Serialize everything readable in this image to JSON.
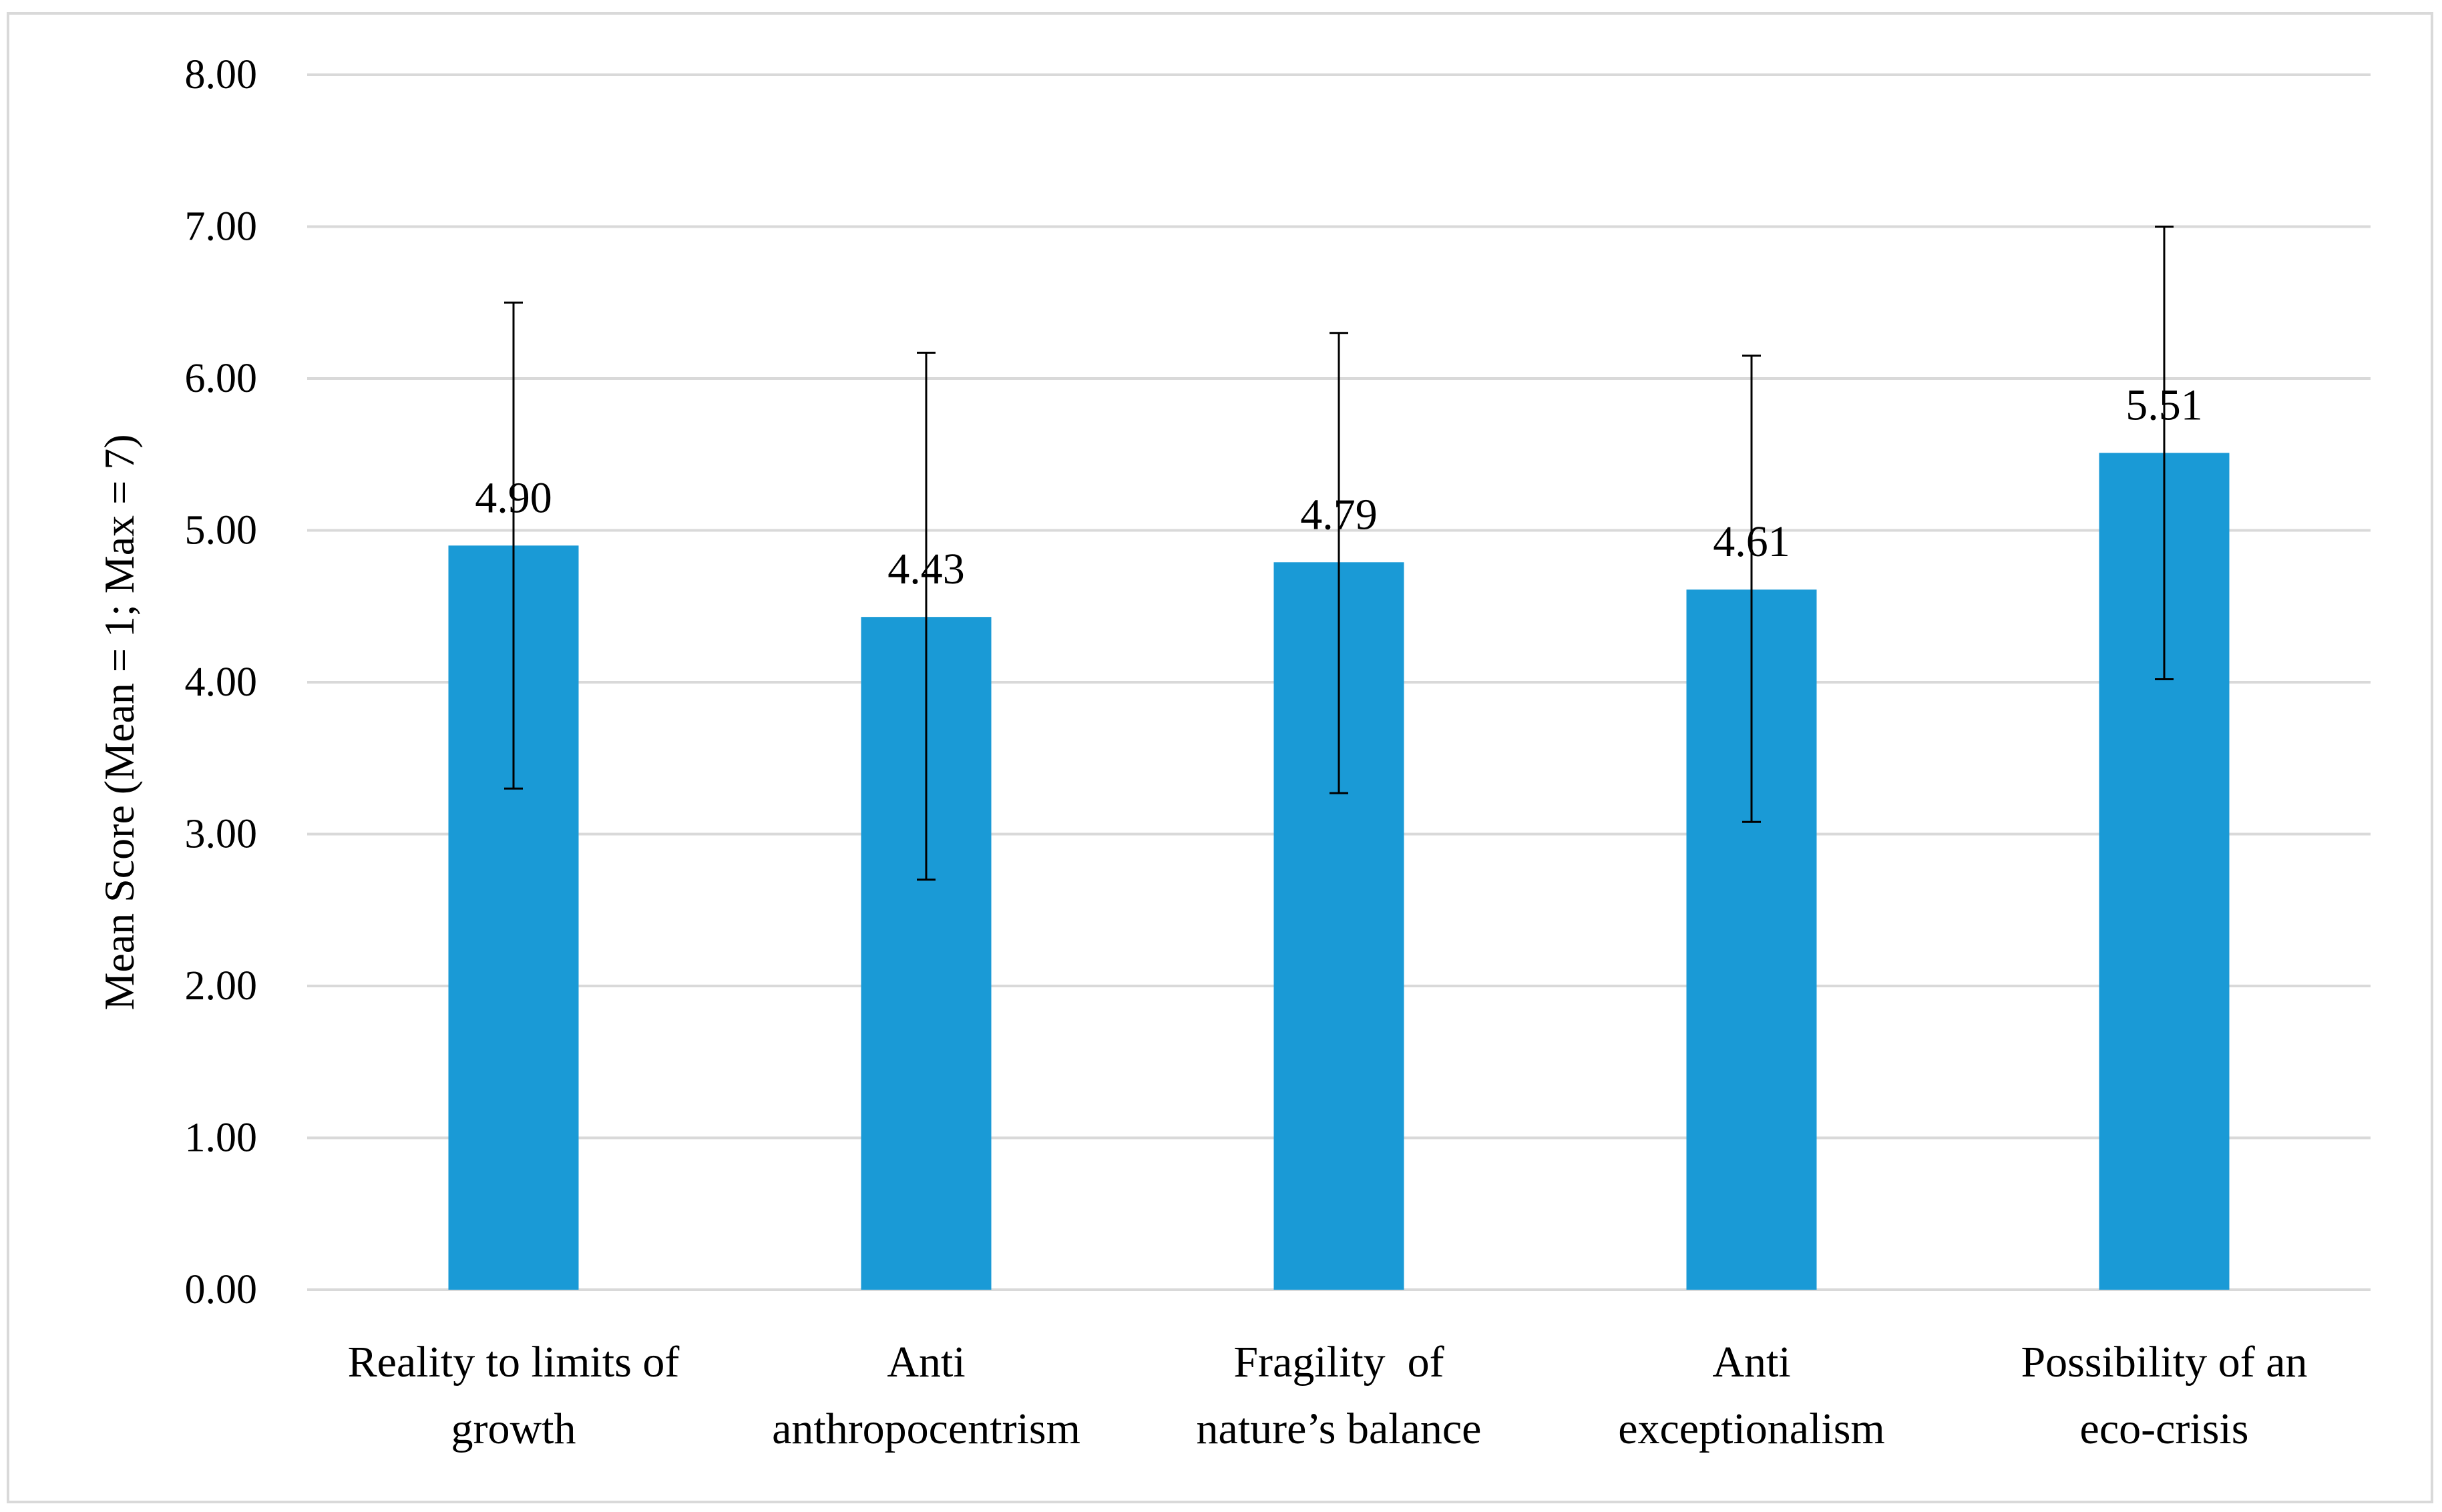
{
  "chart_data": {
    "type": "bar",
    "title": "",
    "xlabel": "",
    "ylabel": "Mean Score (Mean = 1; Max = 7)",
    "ylim": [
      0,
      8
    ],
    "yticks": [
      "0.00",
      "1.00",
      "2.00",
      "3.00",
      "4.00",
      "5.00",
      "6.00",
      "7.00",
      "8.00"
    ],
    "grid": true,
    "legend": "none",
    "categories": [
      [
        "Reality to limits of",
        "growth"
      ],
      [
        "Anti",
        "anthropocentrism"
      ],
      [
        "Fragility  of",
        "nature’s balance"
      ],
      [
        "Anti",
        "exceptionalism"
      ],
      [
        "Possibility of an",
        "eco-crisis"
      ]
    ],
    "values": [
      4.9,
      4.43,
      4.79,
      4.61,
      5.51
    ],
    "value_labels": [
      "4.90",
      "4.43",
      "4.79",
      "4.61",
      "5.51"
    ],
    "error_low": [
      3.3,
      2.7,
      3.27,
      3.08,
      4.02
    ],
    "error_high": [
      6.5,
      6.17,
      6.3,
      6.15,
      7.0
    ],
    "colors": {
      "bar": "#1a9ad6",
      "grid": "#d9d9d9",
      "error": "#000000",
      "frame": "#d9d9d9"
    }
  }
}
